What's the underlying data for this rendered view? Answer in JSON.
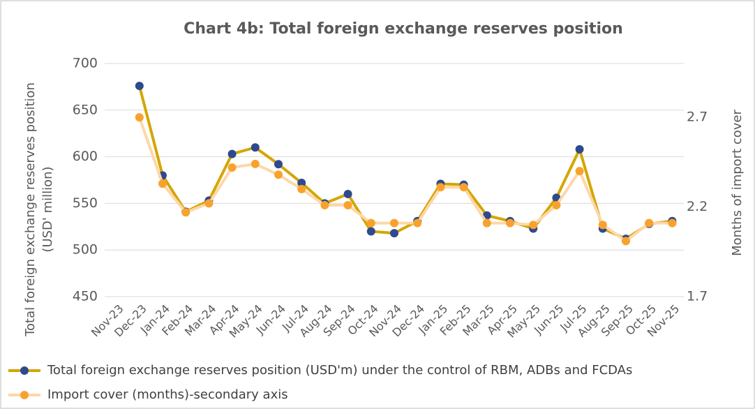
{
  "chart_data": {
    "type": "line",
    "title": "Chart 4b: Total foreign exchange reserves position",
    "ylabel": [
      "Total foreign exchange reserves position",
      "(USD' million)"
    ],
    "y2label": "Months of import cover",
    "categories": [
      "Nov-23",
      "Dec-23",
      "Jan-24",
      "Feb-24",
      "Mar-24",
      "Apr-24",
      "May-24",
      "Jun-24",
      "Jul-24",
      "Aug-24",
      "Sep-24",
      "Oct-24",
      "Nov-24",
      "Dec-24",
      "Jan-25",
      "Feb-25",
      "Mar-25",
      "Apr-25",
      "May-25",
      "Jun-25",
      "Jul-25",
      "Aug-25",
      "Sep-25",
      "Oct-25",
      "Nov-25"
    ],
    "series": [
      {
        "name": "Total foreign exchange reserves position (USD'm) under the control of RBM, ADBs and FCDAs",
        "color": "#d4a600",
        "marker_color": "#2e4a8e",
        "values": [
          null,
          676,
          580,
          541,
          553,
          603,
          610,
          592,
          572,
          550,
          560,
          520,
          518,
          531,
          571,
          570,
          537,
          531,
          523,
          556,
          608,
          523,
          512,
          528,
          531
        ]
      },
      {
        "name": "Import cover (months)-secondary axis",
        "color": "#fdd7a8",
        "marker_color": "#f8a22e",
        "axis": "y2",
        "values": [
          null,
          2.7,
          2.33,
          2.17,
          2.22,
          2.42,
          2.44,
          2.38,
          2.3,
          2.21,
          2.21,
          2.11,
          2.11,
          2.11,
          2.31,
          2.31,
          2.11,
          2.11,
          2.1,
          2.21,
          2.4,
          2.1,
          2.01,
          2.11,
          2.11
        ]
      }
    ],
    "ylim": [
      450,
      700
    ],
    "yticks": [
      450,
      500,
      550,
      600,
      650,
      700
    ],
    "y2lim": [
      1.7,
      3.0
    ],
    "y2ticks": [
      1.7,
      2.2,
      2.7
    ],
    "grid": true,
    "legend": "bottom-left"
  }
}
